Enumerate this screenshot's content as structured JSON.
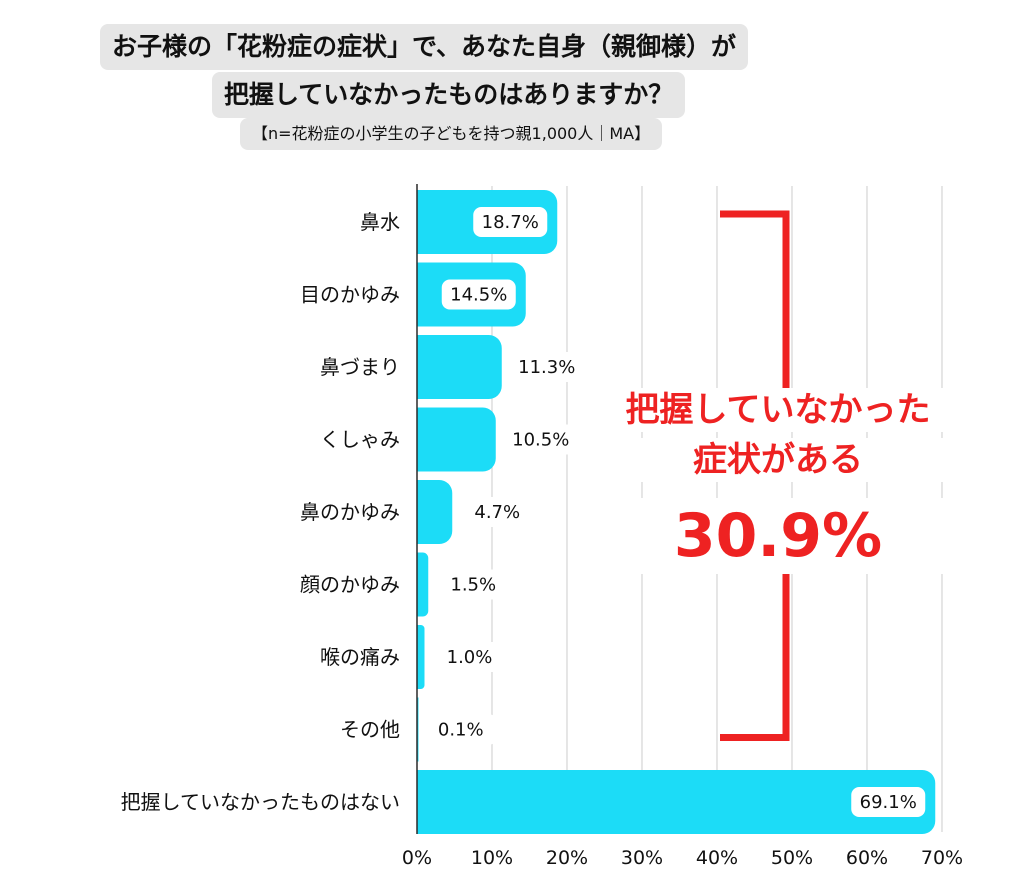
{
  "title": {
    "line1": "お子様の「花粉症の症状」で、あなた自身（親御様）が",
    "line2": "把握していなかったものはありますか？",
    "subtitle": "【n=花粉症の小学生の子どもを持つ親1,000人｜MA】"
  },
  "callout": {
    "line1": "把握していなかった",
    "line2": "症状がある",
    "value": "30.9%"
  },
  "colors": {
    "bar": "#1cdcf7",
    "callout": "#ee2222",
    "grid": "#d4d4d4",
    "title_bg": "#e6e6e6"
  },
  "chart_data": {
    "type": "bar",
    "orientation": "horizontal",
    "categories": [
      "鼻水",
      "目のかゆみ",
      "鼻づまり",
      "くしゃみ",
      "鼻のかゆみ",
      "顔のかゆみ",
      "喉の痛み",
      "その他",
      "把握していなかったものはない"
    ],
    "values": [
      18.7,
      14.5,
      11.3,
      10.5,
      4.7,
      1.5,
      1.0,
      0.1,
      69.1
    ],
    "value_labels": [
      "18.7%",
      "14.5%",
      "11.3%",
      "10.5%",
      "4.7%",
      "1.5%",
      "1.0%",
      "0.1%",
      "69.1%"
    ],
    "xlim": [
      0,
      70
    ],
    "x_ticks": [
      "0%",
      "10%",
      "20%",
      "30%",
      "40%",
      "50%",
      "60%",
      "70%"
    ],
    "grid": true,
    "bracket_spans": [
      "鼻水",
      "その他"
    ]
  }
}
